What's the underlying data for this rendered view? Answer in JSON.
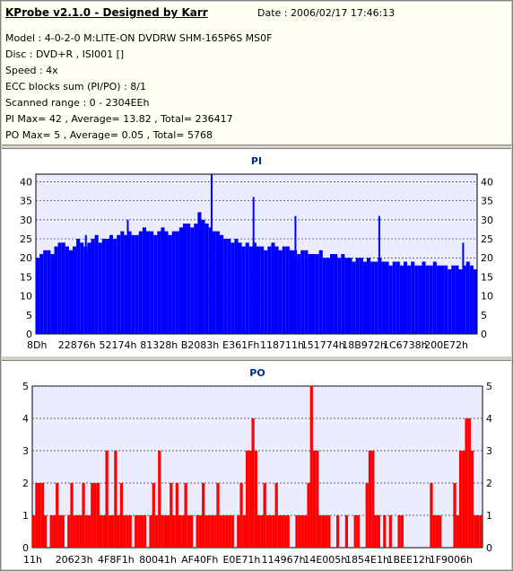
{
  "info": {
    "title": "KProbe v2.1.0 - Designed by Karr",
    "date": "Date : 2006/02/17 17:46:13",
    "lines": [
      "Model : 4-0-2-0 M:LITE-ON DVDRW SHM-165P6S MS0F",
      "Disc : DVD+R , ISI001 []",
      "Speed : 4x",
      "ECC blocks sum (PI/PO) : 8/1",
      "Scanned range : 0 - 2304EEh",
      "PI Max= 42 , Average= 13.82 , Total= 236417",
      "PO Max= 5 , Average= 0.05 , Total= 5768"
    ]
  },
  "colors": {
    "pi_bar": "#0000ff",
    "po_bar": "#ff0000",
    "plot_bg": "#ececff",
    "title": "#003080"
  },
  "chart_data": [
    {
      "type": "bar",
      "title": "PI",
      "xlabel": "",
      "ylabel": "",
      "ylim": [
        0,
        42
      ],
      "yticks": [
        0,
        5,
        10,
        15,
        20,
        25,
        30,
        35,
        40
      ],
      "xticks": [
        "8Dh",
        "22876h",
        "52174h",
        "81328h",
        "B2083h",
        "E361Fh",
        "118711h",
        "151774h",
        "18B972h",
        "1C6738h",
        "200E72h"
      ],
      "grid": true,
      "values": [
        20,
        21,
        22,
        22,
        21,
        23,
        24,
        24,
        23,
        22,
        23,
        25,
        24,
        23,
        24,
        25,
        26,
        24,
        25,
        25,
        26,
        25,
        26,
        27,
        26,
        27,
        26,
        26,
        27,
        28,
        27,
        27,
        26,
        27,
        28,
        27,
        26,
        27,
        27,
        28,
        29,
        29,
        28,
        29,
        32,
        30,
        29,
        28,
        27,
        27,
        26,
        25,
        25,
        24,
        25,
        24,
        23,
        24,
        23,
        24,
        23,
        23,
        22,
        23,
        24,
        23,
        22,
        23,
        23,
        22,
        22,
        21,
        22,
        22,
        21,
        21,
        21,
        22,
        20,
        20,
        21,
        21,
        20,
        21,
        20,
        20,
        19,
        20,
        20,
        19,
        20,
        19,
        19,
        20,
        19,
        19,
        18,
        19,
        19,
        18,
        19,
        18,
        19,
        18,
        18,
        19,
        18,
        18,
        19,
        18,
        18,
        18,
        17,
        18,
        18,
        17,
        18,
        19,
        18,
        17
      ],
      "peaks": [
        [
          "22876h",
          26
        ],
        [
          "52174h",
          30
        ],
        [
          "B2083h",
          42
        ],
        [
          "E361Fh",
          36
        ],
        [
          "118711h",
          31
        ],
        [
          "18B972h",
          31
        ],
        [
          "200E72h",
          24
        ]
      ]
    },
    {
      "type": "bar",
      "title": "PO",
      "xlabel": "",
      "ylabel": "",
      "ylim": [
        0,
        5
      ],
      "yticks": [
        0,
        1,
        2,
        3,
        4,
        5
      ],
      "xticks": [
        "11h",
        "20623h",
        "4F8F1h",
        "80041h",
        "AF40Fh",
        "E0E71h",
        "114967h",
        "14E005h",
        "1854E1h",
        "1BEE12h",
        "1F9006h"
      ],
      "grid": true,
      "values": [
        1,
        2,
        2,
        2,
        1,
        0,
        1,
        1,
        2,
        1,
        1,
        0,
        1,
        2,
        1,
        1,
        1,
        2,
        1,
        1,
        2,
        2,
        2,
        1,
        1,
        3,
        1,
        1,
        3,
        1,
        2,
        1,
        1,
        1,
        0,
        1,
        1,
        1,
        1,
        0,
        1,
        2,
        1,
        3,
        1,
        1,
        1,
        2,
        1,
        2,
        1,
        1,
        2,
        1,
        1,
        0,
        1,
        1,
        2,
        1,
        1,
        1,
        1,
        2,
        1,
        1,
        1,
        1,
        1,
        0,
        1,
        2,
        1,
        3,
        3,
        4,
        3,
        1,
        1,
        2,
        1,
        1,
        1,
        2,
        1,
        1,
        1,
        1,
        0,
        0,
        1,
        1,
        1,
        1,
        2,
        5,
        3,
        3,
        1,
        1,
        1,
        1,
        0,
        0,
        1,
        0,
        0,
        1,
        0,
        0,
        1,
        1,
        0,
        0,
        2,
        3,
        3,
        1,
        1,
        0,
        1,
        0,
        1,
        0,
        0,
        1,
        1,
        0,
        0,
        0,
        0,
        0,
        0,
        0,
        0,
        0,
        2,
        1,
        1,
        1,
        0,
        0,
        0,
        0,
        2,
        1,
        3,
        3,
        4,
        4,
        3,
        1,
        1,
        1
      ]
    }
  ]
}
